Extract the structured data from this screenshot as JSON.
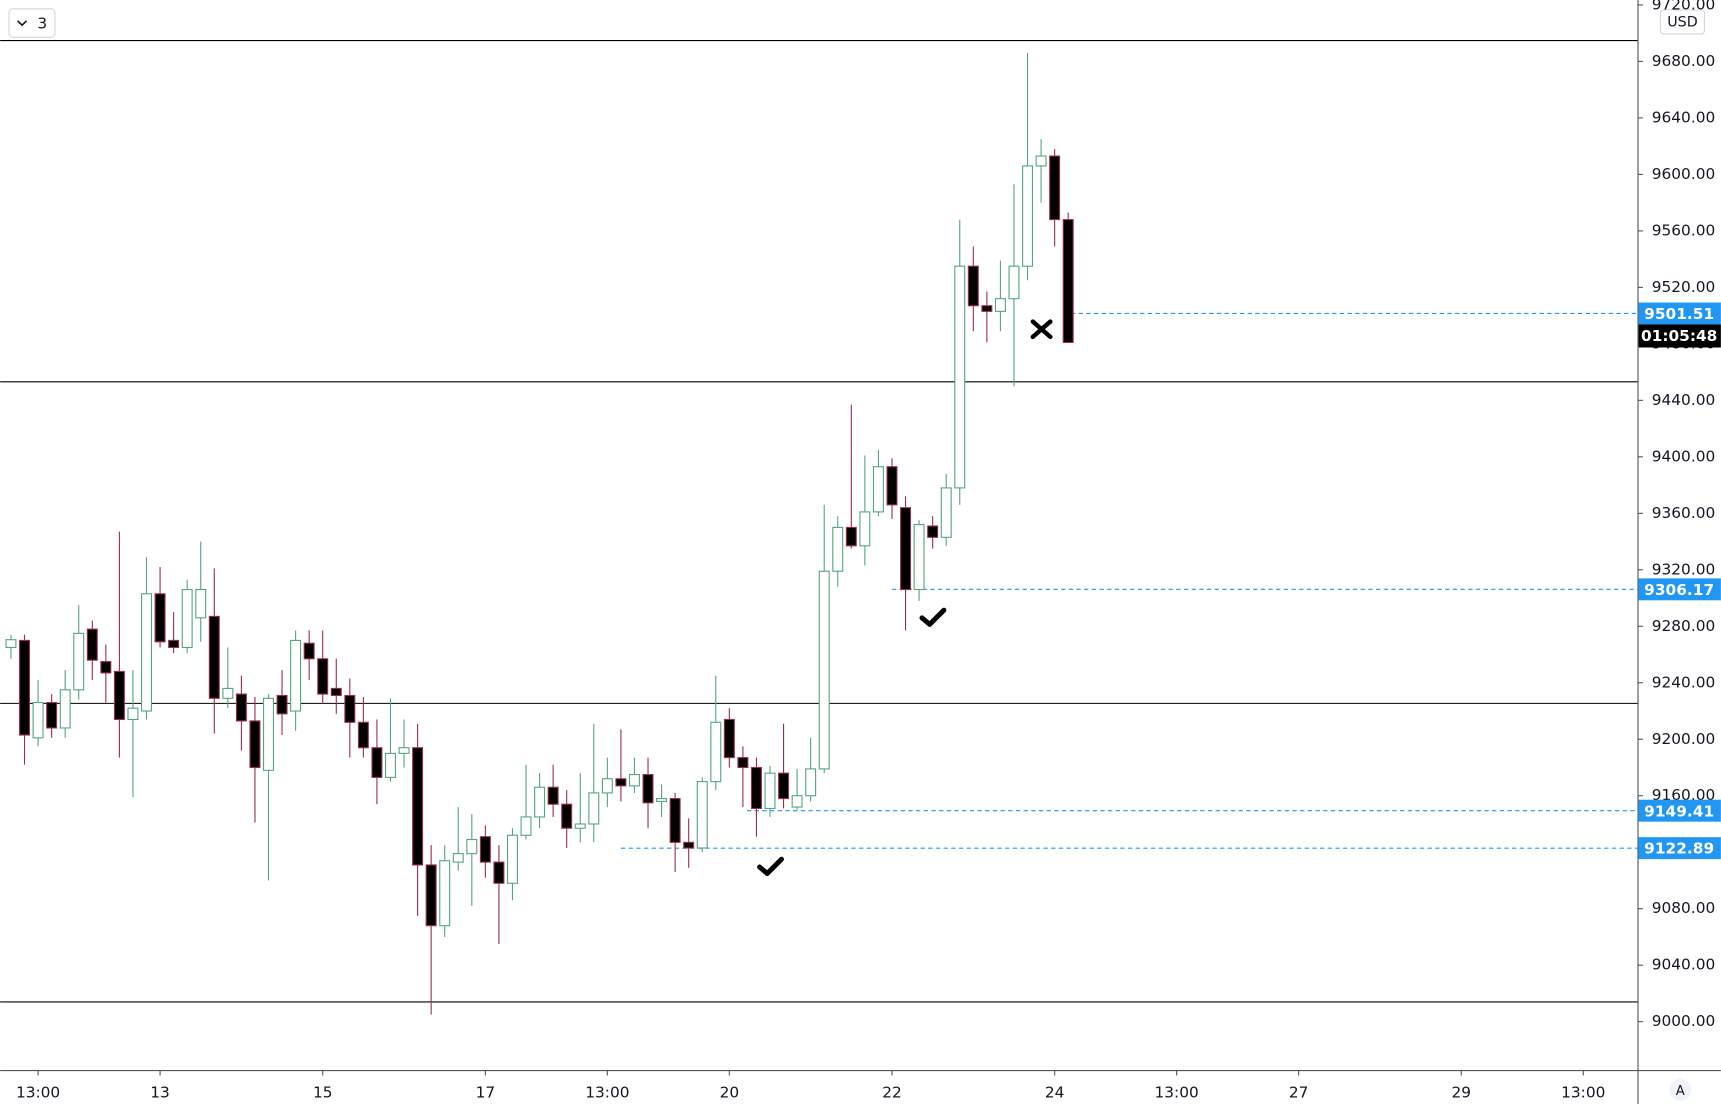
{
  "chart_data": {
    "type": "candlestick",
    "interval_button": "3",
    "currency": "USD",
    "scale_mode": "A",
    "countdown": "01:05:48",
    "up_color": "#53a57e",
    "down_color": "#000000",
    "down_wick_color": "#9c2c4c",
    "xlim": [
      -0.8,
      120
    ],
    "ylim": [
      8965.8,
      9723.5
    ],
    "yticks": [
      {
        "value": 9000,
        "label": "9000.00"
      },
      {
        "value": 9040,
        "label": "9040.00"
      },
      {
        "value": 9080,
        "label": "9080.00"
      },
      {
        "value": 9120,
        "label": "9120.00"
      },
      {
        "value": 9160,
        "label": "9160.00"
      },
      {
        "value": 9200,
        "label": "9200.00"
      },
      {
        "value": 9240,
        "label": "9240.00"
      },
      {
        "value": 9280,
        "label": "9280.00"
      },
      {
        "value": 9320,
        "label": "9320.00"
      },
      {
        "value": 9360,
        "label": "9360.00"
      },
      {
        "value": 9400,
        "label": "9400.00"
      },
      {
        "value": 9440,
        "label": "9440.00"
      },
      {
        "value": 9480,
        "label": "9480.00"
      },
      {
        "value": 9520,
        "label": "9520.00"
      },
      {
        "value": 9560,
        "label": "9560.00"
      },
      {
        "value": 9600,
        "label": "9600.00"
      },
      {
        "value": 9640,
        "label": "9640.00"
      },
      {
        "value": 9680,
        "label": "9680.00"
      },
      {
        "value": 9720,
        "label": "9720.00"
      }
    ],
    "xticks": [
      {
        "value": 2,
        "label": "13:00"
      },
      {
        "value": 11,
        "label": "13"
      },
      {
        "value": 23,
        "label": "15"
      },
      {
        "value": 35,
        "label": "17"
      },
      {
        "value": 44,
        "label": "13:00"
      },
      {
        "value": 53,
        "label": "20"
      },
      {
        "value": 65,
        "label": "22"
      },
      {
        "value": 77,
        "label": "24"
      },
      {
        "value": 86,
        "label": "13:00"
      },
      {
        "value": 95,
        "label": "27"
      },
      {
        "value": 107,
        "label": "29"
      },
      {
        "value": 116,
        "label": "13:00"
      }
    ],
    "levels": [
      9694.8,
      9453.1,
      9225.4,
      9014
    ],
    "price_lines": [
      {
        "value": 9501.51,
        "from": 78.2,
        "color": "#2196f3"
      },
      {
        "value": 9306.17,
        "from": 65,
        "color": "#2196f3"
      },
      {
        "value": 9149.41,
        "from": 54.3,
        "color": "#2196f3"
      },
      {
        "value": 9122.89,
        "from": 45,
        "color": "#2196f3"
      }
    ],
    "open": [
      9265,
      9270,
      9201,
      9226,
      9208,
      9235,
      9278,
      9255,
      9248,
      9214,
      9220,
      9303,
      9270,
      9265,
      9286,
      9287,
      9229,
      9232,
      9213,
      9178,
      9231,
      9220,
      9268,
      9257,
      9236,
      9231,
      9212,
      9194,
      9173,
      9190,
      9194,
      9111,
      9068,
      9113,
      9119,
      9131,
      9113,
      9098,
      9132,
      9145,
      9166,
      9154,
      9137,
      9140,
      9162,
      9172,
      9167,
      9175,
      9156,
      9158,
      9127,
      9123,
      9170,
      9214,
      9187,
      9180,
      9151,
      9176,
      9152,
      9160,
      9179,
      9319,
      9350,
      9337,
      9361,
      9393,
      9364,
      9306,
      9351,
      9343,
      9378,
      9535,
      9507,
      9503,
      9512,
      9535,
      9606,
      9613,
      9568
    ],
    "close": [
      9270.5,
      9203,
      9226,
      9208,
      9235,
      9275,
      9256,
      9247,
      9214,
      9222,
      9303,
      9269,
      9265,
      9306,
      9306,
      9229,
      9236,
      9213,
      9180,
      9229,
      9218,
      9270,
      9257,
      9232,
      9231,
      9212,
      9194,
      9173,
      9190,
      9194,
      9111,
      9068,
      9114,
      9119,
      9129,
      9113,
      9098,
      9132,
      9145,
      9166,
      9154,
      9137,
      9140,
      9162,
      9172,
      9167,
      9175,
      9155,
      9158,
      9127,
      9123,
      9170,
      9212,
      9187,
      9180,
      9151,
      9176,
      9158,
      9160,
      9179,
      9319,
      9350,
      9337,
      9361,
      9393,
      9366,
      9306,
      9352,
      9343,
      9378,
      9535,
      9507,
      9503,
      9512,
      9535,
      9606,
      9613,
      9568,
      9481
    ],
    "high": [
      9274,
      9274,
      9242,
      9232,
      9249,
      9295,
      9284,
      9267,
      9347,
      9249,
      9329,
      9322,
      9290,
      9313,
      9340,
      9321,
      9265,
      9245,
      9230,
      9232,
      9249,
      9277,
      9277,
      9277,
      9257,
      9243,
      9230,
      9214,
      9229,
      9214,
      9211,
      9125,
      9125,
      9152,
      9147,
      9139,
      9125,
      9137,
      9182,
      9176,
      9182,
      9164,
      9176,
      9211,
      9187,
      9207,
      9187,
      9187,
      9168,
      9162,
      9144,
      9173,
      9245,
      9222,
      9195,
      9187,
      9181,
      9211,
      9179,
      9201,
      9366,
      9358,
      9437,
      9401,
      9405,
      9399,
      9372,
      9355,
      9358,
      9388,
      9568,
      9549,
      9517,
      9539,
      9593,
      9686,
      9625,
      9618,
      9573
    ],
    "low": [
      9257,
      9182,
      9195,
      9201,
      9201,
      9228,
      9242,
      9226,
      9187,
      9159,
      9214,
      9265,
      9261,
      9261,
      9269,
      9204,
      9222,
      9192,
      9141,
      9100,
      9203,
      9206,
      9242,
      9225,
      9218,
      9187,
      9187,
      9154,
      9170,
      9180,
      9075,
      9005,
      9060,
      9107,
      9082,
      9102,
      9055,
      9086,
      9129,
      9137,
      9145,
      9123,
      9127,
      9127,
      9152,
      9156,
      9162,
      9137,
      9145,
      9106,
      9109,
      9120,
      9164,
      9180,
      9152,
      9131,
      9145,
      9151,
      9150,
      9156,
      9176,
      9308,
      9335,
      9323,
      9358,
      9356,
      9277,
      9298,
      9335,
      9337,
      9366,
      9489,
      9481,
      9489,
      9450,
      9525,
      9580,
      9549,
      9481
    ]
  }
}
